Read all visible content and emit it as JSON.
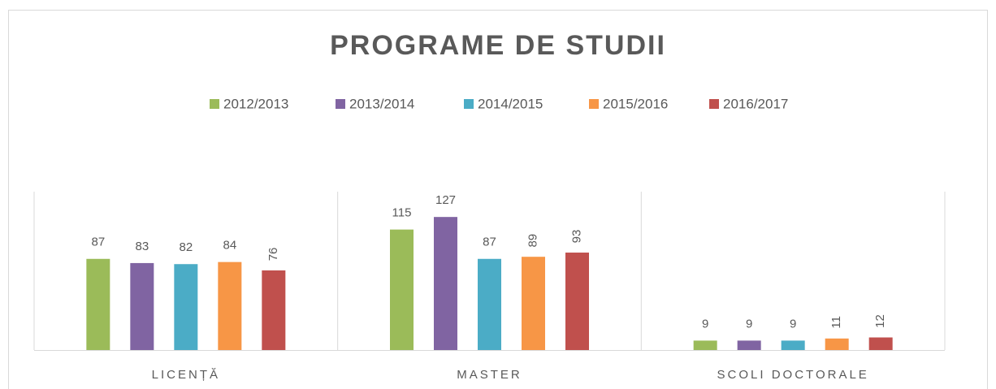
{
  "chart_data": {
    "type": "bar",
    "title": "PROGRAME DE STUDII",
    "categories": [
      "LICENȚĂ",
      "MASTER",
      "SCOLI DOCTORALE"
    ],
    "series": [
      {
        "name": "2012/2013",
        "color": "#9bbb59",
        "values": [
          87,
          115,
          9
        ]
      },
      {
        "name": "2013/2014",
        "color": "#8064a2",
        "values": [
          83,
          127,
          9
        ]
      },
      {
        "name": "2014/2015",
        "color": "#4bacc6",
        "values": [
          82,
          87,
          9
        ]
      },
      {
        "name": "2015/2016",
        "color": "#f79646",
        "values": [
          84,
          89,
          11
        ]
      },
      {
        "name": "2016/2017",
        "color": "#c0504d",
        "values": [
          76,
          93,
          12
        ]
      }
    ]
  }
}
